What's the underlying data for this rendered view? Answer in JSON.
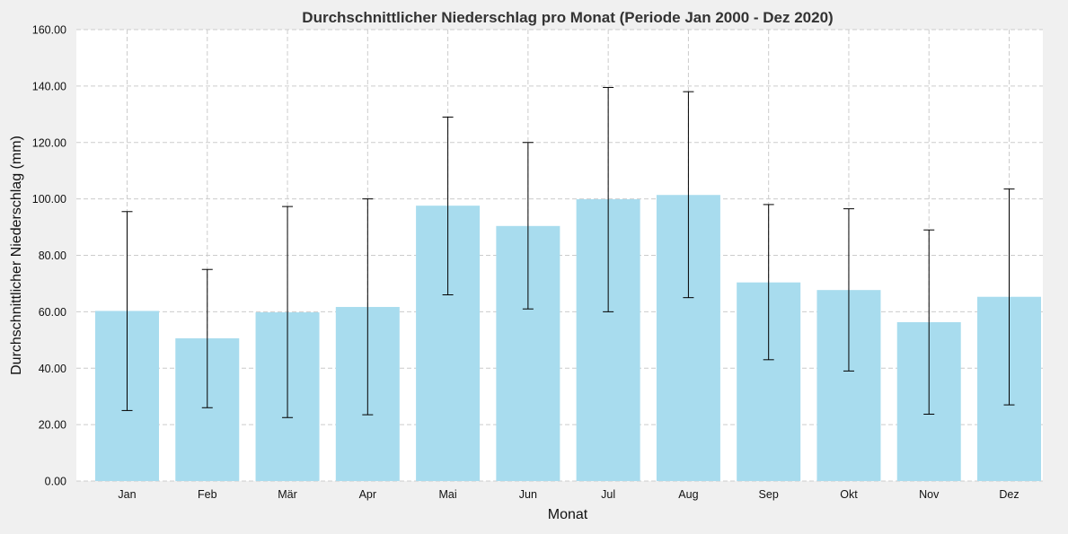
{
  "chart_data": {
    "type": "bar",
    "title": "Durchschnittlicher Niederschlag pro Monat (Periode Jan 2000 - Dez 2020)",
    "xlabel": "Monat",
    "ylabel": "Durchschnittlicher Niederschlag (mm)",
    "ylim": [
      0,
      160
    ],
    "yticks": [
      "0.00",
      "20.00",
      "40.00",
      "60.00",
      "80.00",
      "100.00",
      "120.00",
      "140.00",
      "160.00"
    ],
    "grid": true,
    "categories": [
      "Jan",
      "Feb",
      "Mär",
      "Apr",
      "Mai",
      "Jun",
      "Jul",
      "Aug",
      "Sep",
      "Okt",
      "Nov",
      "Dez"
    ],
    "values": [
      60.3,
      50.6,
      59.8,
      61.7,
      97.6,
      90.4,
      99.9,
      101.4,
      70.4,
      67.7,
      56.3,
      65.3
    ],
    "error_low": [
      25.0,
      26.0,
      22.5,
      23.5,
      66.0,
      61.0,
      60.0,
      65.0,
      43.0,
      39.0,
      23.7,
      27.0
    ],
    "error_high": [
      95.5,
      75.0,
      97.3,
      100.0,
      129.0,
      120.0,
      139.5,
      138.0,
      98.0,
      96.5,
      89.0,
      103.5
    ],
    "colors": {
      "bar": "#a8dcee",
      "error": "#000000",
      "grid": "#cccccc",
      "plot_bg": "#ffffff",
      "page_bg": "#f0f0f0"
    }
  }
}
